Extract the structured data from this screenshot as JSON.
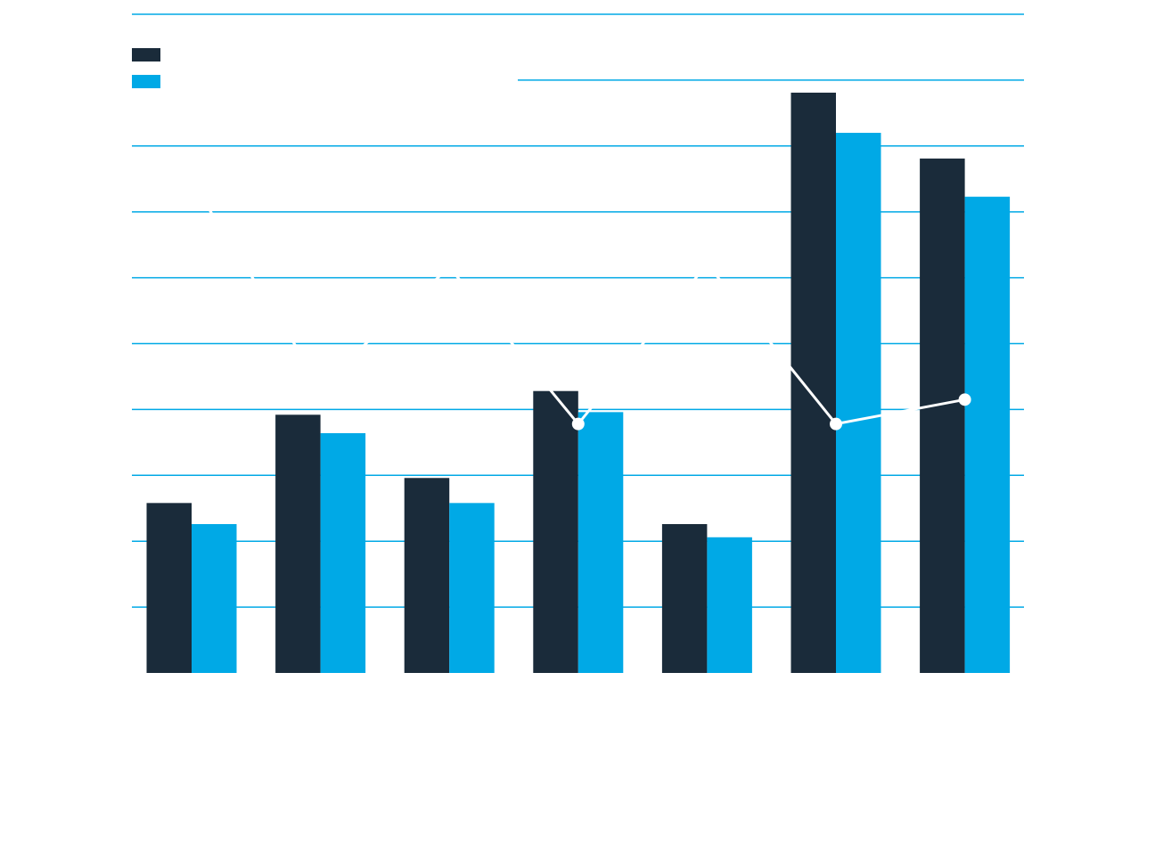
{
  "colors": {
    "series_dark": "#1a2b3a",
    "series_blue": "#00a9e6",
    "line": "#ffffff",
    "grid": "#00a9e6",
    "background": "#ffffff"
  },
  "chart_data": {
    "type": "bar",
    "title": "",
    "xlabel": "",
    "ylabel": "",
    "categories": [
      "",
      "",
      "",
      "",
      "",
      "",
      ""
    ],
    "ylim": [
      0,
      10
    ],
    "grid": true,
    "legend": "top-left",
    "series": [
      {
        "kind": "bar",
        "color": "#1a2b3a",
        "values": [
          2.58,
          3.92,
          2.96,
          4.28,
          2.26,
          8.81,
          7.81
        ]
      },
      {
        "kind": "bar",
        "color": "#00a9e6",
        "values": [
          2.26,
          3.64,
          2.58,
          3.96,
          2.06,
          8.2,
          7.23
        ]
      },
      {
        "kind": "line",
        "color": "#ffffff",
        "values": [
          7.46,
          4.37,
          6.16,
          3.78,
          6.21,
          3.78,
          4.15
        ]
      }
    ]
  }
}
